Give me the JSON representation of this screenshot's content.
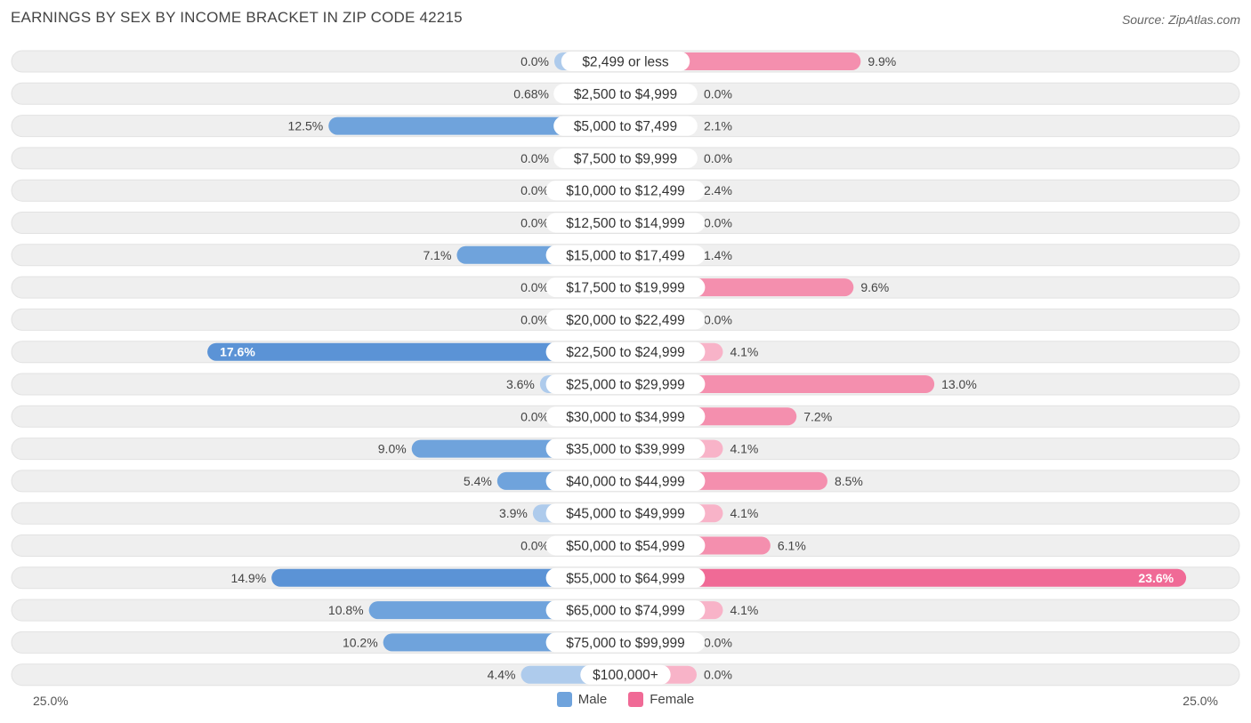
{
  "header": {
    "title": "EARNINGS BY SEX BY INCOME BRACKET IN ZIP CODE 42215",
    "source": "Source: ZipAtlas.com"
  },
  "axis": {
    "left_label": "25.0%",
    "right_label": "25.0%"
  },
  "legend": {
    "male_label": "Male",
    "female_label": "Female"
  },
  "colors": {
    "male": "#6fa3dc",
    "male_strong": "#5b93d6",
    "male_light": "#aecbec",
    "female": "#f48fae",
    "female_strong": "#f06a96",
    "female_light": "#f8b3c8",
    "row_bg": "#efefef"
  },
  "chart_data": {
    "type": "bar",
    "title": "EARNINGS BY SEX BY INCOME BRACKET IN ZIP CODE 42215",
    "orientation": "diverging-horizontal",
    "xlim": [
      -25,
      25
    ],
    "categories": [
      "$2,499 or less",
      "$2,500 to $4,999",
      "$5,000 to $7,499",
      "$7,500 to $9,999",
      "$10,000 to $12,499",
      "$12,500 to $14,999",
      "$15,000 to $17,499",
      "$17,500 to $19,999",
      "$20,000 to $22,499",
      "$22,500 to $24,999",
      "$25,000 to $29,999",
      "$30,000 to $34,999",
      "$35,000 to $39,999",
      "$40,000 to $44,999",
      "$45,000 to $49,999",
      "$50,000 to $54,999",
      "$55,000 to $64,999",
      "$65,000 to $74,999",
      "$75,000 to $99,999",
      "$100,000+"
    ],
    "series": [
      {
        "name": "Male",
        "values": [
          0.0,
          0.68,
          12.5,
          0.0,
          0.0,
          0.0,
          7.1,
          0.0,
          0.0,
          17.6,
          3.6,
          0.0,
          9.0,
          5.4,
          3.9,
          0.0,
          14.9,
          10.8,
          10.2,
          4.4
        ],
        "labels": [
          "0.0%",
          "0.68%",
          "12.5%",
          "0.0%",
          "0.0%",
          "0.0%",
          "7.1%",
          "0.0%",
          "0.0%",
          "17.6%",
          "3.6%",
          "0.0%",
          "9.0%",
          "5.4%",
          "3.9%",
          "0.0%",
          "14.9%",
          "10.8%",
          "10.2%",
          "4.4%"
        ]
      },
      {
        "name": "Female",
        "values": [
          9.9,
          0.0,
          2.1,
          0.0,
          2.4,
          0.0,
          1.4,
          9.6,
          0.0,
          4.1,
          13.0,
          7.2,
          4.1,
          8.5,
          4.1,
          6.1,
          23.6,
          4.1,
          0.0,
          0.0
        ],
        "labels": [
          "9.9%",
          "0.0%",
          "2.1%",
          "0.0%",
          "2.4%",
          "0.0%",
          "1.4%",
          "9.6%",
          "0.0%",
          "4.1%",
          "13.0%",
          "7.2%",
          "4.1%",
          "8.5%",
          "4.1%",
          "6.1%",
          "23.6%",
          "4.1%",
          "0.0%",
          "0.0%"
        ]
      }
    ]
  }
}
